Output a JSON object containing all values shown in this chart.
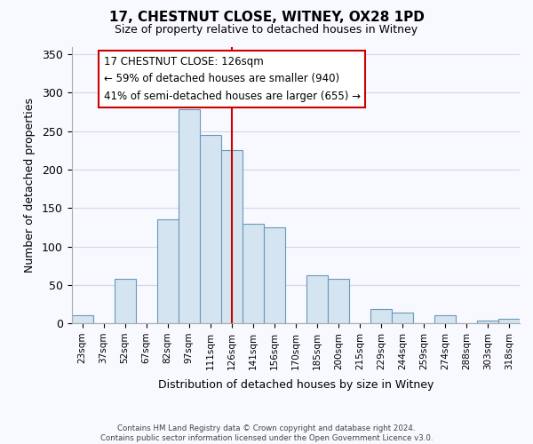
{
  "title": "17, CHESTNUT CLOSE, WITNEY, OX28 1PD",
  "subtitle": "Size of property relative to detached houses in Witney",
  "xlabel": "Distribution of detached houses by size in Witney",
  "ylabel": "Number of detached properties",
  "bar_labels": [
    "23sqm",
    "37sqm",
    "52sqm",
    "67sqm",
    "82sqm",
    "97sqm",
    "111sqm",
    "126sqm",
    "141sqm",
    "156sqm",
    "170sqm",
    "185sqm",
    "200sqm",
    "215sqm",
    "229sqm",
    "244sqm",
    "259sqm",
    "274sqm",
    "288sqm",
    "303sqm",
    "318sqm"
  ],
  "bar_values": [
    10,
    0,
    58,
    0,
    135,
    278,
    245,
    225,
    130,
    125,
    0,
    62,
    58,
    0,
    18,
    14,
    0,
    10,
    0,
    4,
    6
  ],
  "bar_color": "#d4e4f0",
  "bar_edge_color": "#6899bb",
  "vline_x_index": 7,
  "vline_color": "#cc0000",
  "ylim": [
    0,
    360
  ],
  "yticks": [
    0,
    50,
    100,
    150,
    200,
    250,
    300,
    350
  ],
  "annotation_title": "17 CHESTNUT CLOSE: 126sqm",
  "annotation_line1": "← 59% of detached houses are smaller (940)",
  "annotation_line2": "41% of semi-detached houses are larger (655) →",
  "annotation_box_color": "#ffffff",
  "annotation_box_edge": "#cc0000",
  "footer_line1": "Contains HM Land Registry data © Crown copyright and database right 2024.",
  "footer_line2": "Contains public sector information licensed under the Open Government Licence v3.0.",
  "bg_color": "#f8f8ff",
  "grid_color": "#d0d8e8"
}
